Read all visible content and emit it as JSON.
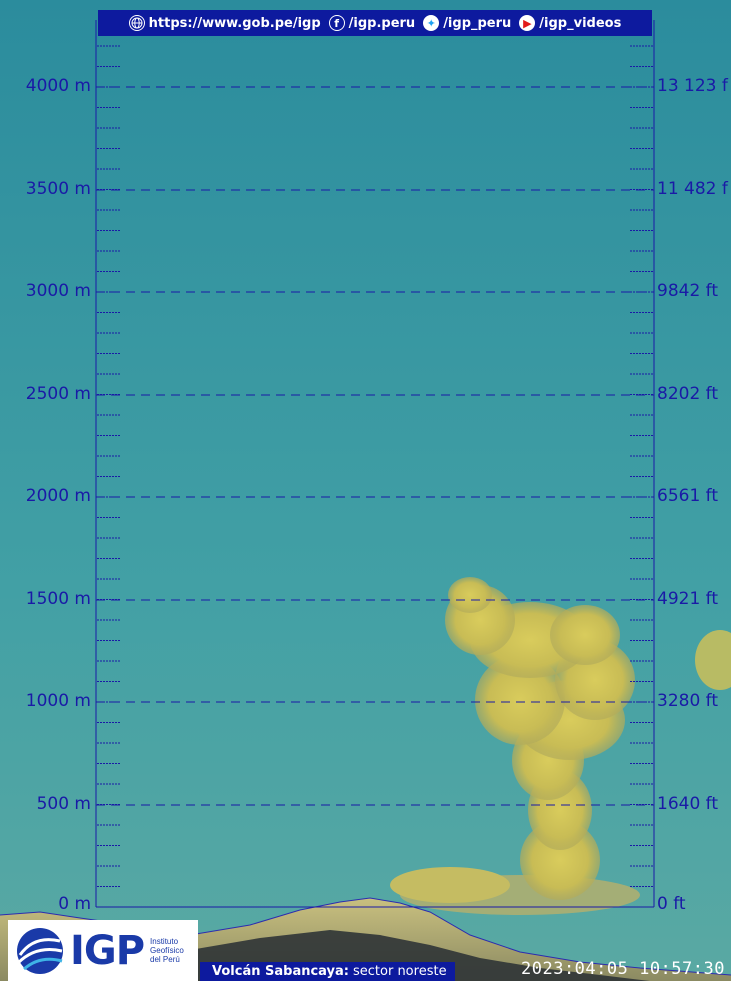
{
  "header": {
    "website": "https://www.gob.pe/igp",
    "facebook": "/igp.peru",
    "twitter": "/igp_peru",
    "youtube": "/igp_videos"
  },
  "scale": {
    "left_labels": [
      "4000 m",
      "3500 m",
      "3000 m",
      "2500 m",
      "2000 m",
      "1500 m",
      "1000 m",
      "500 m",
      "0 m"
    ],
    "right_labels": [
      "13 123 f",
      "11 482 f",
      "9842 ft",
      "8202 ft",
      "6561 ft",
      "4921 ft",
      "3280 ft",
      "1640 ft",
      "0 ft"
    ]
  },
  "logo": {
    "name": "IGP",
    "sub_line1": "Instituto",
    "sub_line2": "Geofísico",
    "sub_line3": "del Perú"
  },
  "caption": {
    "volcano": "Volcán Sabancaya:",
    "sector": "sector noreste"
  },
  "timestamp": "2023:04:05 10:57:30",
  "colors": {
    "sky_top": "#2d8f9f",
    "sky_bottom": "#4fa5a5",
    "plume": "#d6c756",
    "grid": "#1a1aa6",
    "banner": "#0d1a9e"
  },
  "icons": [
    "globe-icon",
    "facebook-icon",
    "twitter-icon",
    "youtube-icon"
  ]
}
